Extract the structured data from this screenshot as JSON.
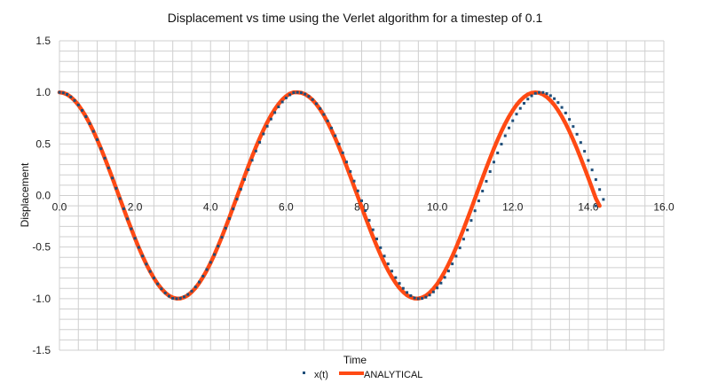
{
  "chart_data": {
    "type": "line",
    "title": "Displacement vs time using the Verlet algorithm for a timestep of 0.1",
    "xlabel": "Time",
    "ylabel": "Displacement",
    "xlim": [
      0,
      16
    ],
    "ylim": [
      -1.5,
      1.5
    ],
    "x_ticks": [
      "0.0",
      "2.0",
      "4.0",
      "6.0",
      "8.0",
      "10.0",
      "12.0",
      "14.0",
      "16.0"
    ],
    "y_ticks": [
      "1.5",
      "1.0",
      "0.5",
      "0.0",
      "-0.5",
      "-1.0",
      "-1.5"
    ],
    "grid": true,
    "legend_position": "bottom",
    "x_step": 0.1,
    "x_end": 14.2,
    "series": [
      {
        "name": "x(t)",
        "style": "markers",
        "color": "#1f4e79",
        "y": [
          1.0,
          0.995,
          0.98,
          0.955,
          0.921,
          0.878,
          0.825,
          0.765,
          0.697,
          0.622,
          0.541,
          0.454,
          0.362,
          0.267,
          0.169,
          0.07,
          -0.03,
          -0.129,
          -0.227,
          -0.323,
          -0.415,
          -0.503,
          -0.587,
          -0.665,
          -0.736,
          -0.8,
          -0.857,
          -0.905,
          -0.945,
          -0.976,
          -0.997,
          -1.0,
          -0.996,
          -0.982,
          -0.959,
          -0.927,
          -0.887,
          -0.839,
          -0.782,
          -0.718,
          -0.648,
          -0.572,
          -0.491,
          -0.405,
          -0.316,
          -0.224,
          -0.13,
          -0.035,
          0.061,
          0.156,
          0.25,
          0.342,
          0.431,
          0.516,
          0.597,
          0.672,
          0.741,
          0.804,
          0.859,
          0.907,
          0.946,
          0.976,
          0.997,
          1.0,
          0.997,
          0.983,
          0.961,
          0.93,
          0.89,
          0.842,
          0.786,
          0.723,
          0.654,
          0.579,
          0.499,
          0.414,
          0.325,
          0.233,
          0.14,
          0.045,
          -0.051,
          -0.146,
          -0.24,
          -0.332,
          -0.421,
          -0.506,
          -0.587,
          -0.663,
          -0.733,
          -0.796,
          -0.852,
          -0.9,
          -0.94,
          -0.971,
          -0.993,
          -1.0,
          -0.998,
          -0.986,
          -0.965,
          -0.935,
          -0.896,
          -0.849,
          -0.794,
          -0.732,
          -0.663,
          -0.588,
          -0.508,
          -0.423,
          -0.334,
          -0.242,
          -0.148,
          -0.052,
          0.043,
          0.138,
          0.232,
          0.324,
          0.413,
          0.498,
          0.579,
          0.655,
          0.725,
          0.789,
          0.845,
          0.894,
          0.935,
          0.967,
          0.99,
          1.0,
          0.999,
          0.988,
          0.968,
          0.939,
          0.901,
          0.854,
          0.8,
          0.738,
          0.669,
          0.594,
          0.514,
          0.429,
          0.34,
          0.248,
          0.154,
          0.058,
          -0.038,
          -0.1
        ]
      },
      {
        "name": "ANALYTICAL",
        "style": "line",
        "color": "#ff4a14",
        "y": [
          1.0,
          0.995,
          0.98,
          0.955,
          0.921,
          0.878,
          0.825,
          0.765,
          0.697,
          0.622,
          0.54,
          0.454,
          0.362,
          0.267,
          0.17,
          0.071,
          -0.029,
          -0.129,
          -0.227,
          -0.323,
          -0.416,
          -0.505,
          -0.589,
          -0.666,
          -0.737,
          -0.801,
          -0.857,
          -0.904,
          -0.942,
          -0.971,
          -0.99,
          -0.999,
          -0.998,
          -0.987,
          -0.967,
          -0.936,
          -0.897,
          -0.848,
          -0.791,
          -0.726,
          -0.654,
          -0.575,
          -0.49,
          -0.401,
          -0.307,
          -0.211,
          -0.112,
          -0.012,
          0.087,
          0.186,
          0.284,
          0.378,
          0.469,
          0.554,
          0.635,
          0.709,
          0.776,
          0.836,
          0.887,
          0.93,
          0.963,
          0.987,
          1.0,
          1.0,
          0.996,
          0.982,
          0.959,
          0.927,
          0.885,
          0.835,
          0.776,
          0.709,
          0.635,
          0.555,
          0.469,
          0.378,
          0.284,
          0.186,
          0.087,
          -0.012,
          -0.112,
          -0.211,
          -0.307,
          -0.401,
          -0.49,
          -0.575,
          -0.654,
          -0.726,
          -0.791,
          -0.848,
          -0.897,
          -0.936,
          -0.967,
          -0.987,
          -0.998,
          -0.999,
          -0.99,
          -0.971,
          -0.942,
          -0.904,
          -0.857,
          -0.801,
          -0.737,
          -0.666,
          -0.589,
          -0.505,
          -0.416,
          -0.323,
          -0.227,
          -0.129,
          -0.029,
          0.071,
          0.17,
          0.267,
          0.362,
          0.454,
          0.54,
          0.622,
          0.697,
          0.765,
          0.825,
          0.878,
          0.921,
          0.955,
          0.98,
          0.995,
          1.0,
          0.995,
          0.98,
          0.955,
          0.921,
          0.878,
          0.825,
          0.765,
          0.697,
          0.622,
          0.54,
          0.454,
          0.362,
          0.267,
          0.17,
          0.071,
          -0.029,
          -0.1
        ]
      }
    ]
  }
}
